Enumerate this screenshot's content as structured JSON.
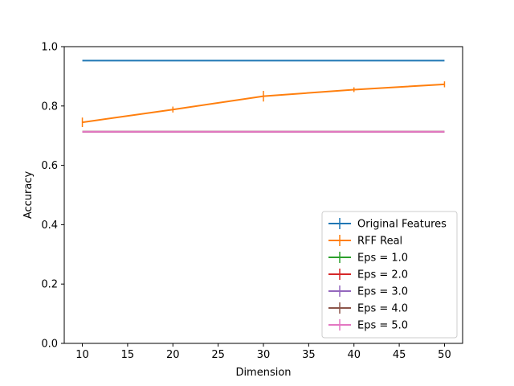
{
  "chart_data": {
    "type": "line",
    "xlabel": "Dimension",
    "ylabel": "Accuracy",
    "xlim": [
      8,
      52
    ],
    "ylim": [
      0.0,
      1.0
    ],
    "x_ticks": [
      10,
      15,
      20,
      25,
      30,
      35,
      40,
      45,
      50
    ],
    "x_tick_labels": [
      "10",
      "15",
      "20",
      "25",
      "30",
      "35",
      "40",
      "45",
      "50"
    ],
    "y_ticks": [
      0.0,
      0.2,
      0.4,
      0.6,
      0.8,
      1.0
    ],
    "y_tick_labels": [
      "0.0",
      "0.2",
      "0.4",
      "0.6",
      "0.8",
      "1.0"
    ],
    "grid": false,
    "legend_position": "lower-right",
    "x": [
      10,
      20,
      30,
      40,
      50
    ],
    "series": [
      {
        "name": "Original Features",
        "color": "#1f77b4",
        "values": [
          0.953,
          0.953,
          0.953,
          0.953,
          0.953
        ],
        "errors": [
          0,
          0,
          0,
          0,
          0
        ]
      },
      {
        "name": "RFF Real",
        "color": "#ff7f0e",
        "values": [
          0.745,
          0.788,
          0.833,
          0.855,
          0.873
        ],
        "errors": [
          0.016,
          0.01,
          0.018,
          0.008,
          0.01
        ]
      },
      {
        "name": "Eps = 1.0",
        "color": "#2ca02c",
        "values": [
          0.713,
          0.713,
          0.713,
          0.713,
          0.713
        ],
        "errors": [
          0,
          0,
          0,
          0,
          0
        ]
      },
      {
        "name": "Eps = 2.0",
        "color": "#d62728",
        "values": [
          0.713,
          0.713,
          0.713,
          0.713,
          0.713
        ],
        "errors": [
          0,
          0,
          0,
          0,
          0
        ]
      },
      {
        "name": "Eps = 3.0",
        "color": "#9467bd",
        "values": [
          0.713,
          0.713,
          0.713,
          0.713,
          0.713
        ],
        "errors": [
          0,
          0,
          0,
          0,
          0
        ]
      },
      {
        "name": "Eps = 4.0",
        "color": "#8c564b",
        "values": [
          0.713,
          0.713,
          0.713,
          0.713,
          0.713
        ],
        "errors": [
          0,
          0,
          0,
          0,
          0
        ]
      },
      {
        "name": "Eps = 5.0",
        "color": "#e377c2",
        "values": [
          0.713,
          0.713,
          0.713,
          0.713,
          0.713
        ],
        "errors": [
          0,
          0,
          0,
          0,
          0
        ]
      }
    ]
  }
}
